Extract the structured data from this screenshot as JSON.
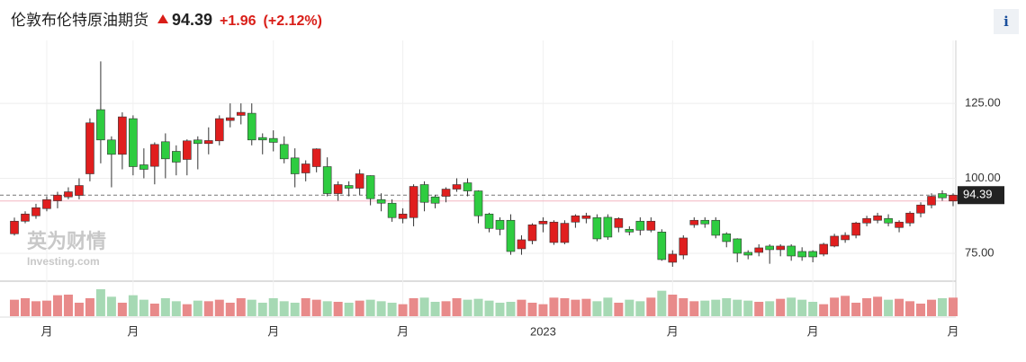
{
  "chart_data": {
    "type": "candlestick",
    "title": "伦敦布伦特原油期货",
    "last_price": 94.39,
    "change": {
      "value": 1.96,
      "label": "+1.96"
    },
    "change_pct": {
      "value": 2.12,
      "label": "(+2.12%)"
    },
    "info_icon": "i",
    "watermark": [
      "英为财情",
      "Investing.com"
    ],
    "up_color": "#e01e1e",
    "down_color": "#2ecc40",
    "categories": [
      null,
      null,
      null,
      "月",
      null,
      null,
      null,
      null,
      null,
      null,
      null,
      "月",
      null,
      null,
      null,
      null,
      null,
      null,
      null,
      null,
      null,
      null,
      null,
      null,
      "月",
      null,
      null,
      null,
      null,
      null,
      null,
      null,
      null,
      null,
      null,
      null,
      "月",
      null,
      null,
      null,
      null,
      null,
      null,
      null,
      null,
      null,
      null,
      null,
      null,
      "2023",
      null,
      null,
      null,
      null,
      null,
      null,
      null,
      null,
      null,
      null,
      null,
      "月",
      null,
      null,
      null,
      null,
      null,
      null,
      null,
      null,
      null,
      null,
      null,
      null,
      "月",
      null,
      null,
      null,
      null,
      null,
      null,
      null,
      null,
      null,
      null,
      null,
      null,
      "月"
    ],
    "open": [
      81.5,
      85.7,
      87.5,
      89.9,
      92.5,
      93.8,
      94.3,
      101.5,
      122.9,
      112.8,
      108,
      119.9,
      104.5,
      104,
      112.2,
      109,
      106.3,
      112.8,
      111.6,
      112.5,
      119.3,
      121,
      121.7,
      113.6,
      113.3,
      111.3,
      106.8,
      101.8,
      103.9,
      103.9,
      94.9,
      97.6,
      96.7,
      100.9,
      92.9,
      91.7,
      86.6,
      86.9,
      97.9,
      93.8,
      94,
      96.4,
      98.5,
      95.8,
      88.1,
      86,
      86,
      76.5,
      79.2,
      84.8,
      78.6,
      78.6,
      85.4,
      86.6,
      86.9,
      87,
      83.6,
      83,
      85.7,
      82.7,
      82.1,
      72,
      74.4,
      84.5,
      86,
      86,
      81.5,
      79.8,
      75.3,
      75.3,
      77.4,
      76.2,
      77.4,
      75.6,
      75.6,
      74.7,
      77.4,
      79.5,
      81,
      85.1,
      86,
      86.6,
      83.6,
      85.1,
      88.4,
      91.1,
      94.9,
      92.43
    ],
    "high": [
      86.9,
      89,
      91.5,
      94,
      95.5,
      97,
      100,
      120,
      139,
      114,
      122,
      121,
      110,
      112,
      115,
      111,
      113,
      114,
      117,
      121,
      125,
      125,
      125,
      115,
      116,
      114,
      110,
      106,
      110,
      107,
      99,
      99,
      103,
      101,
      95,
      93,
      90,
      98,
      99,
      94.5,
      97,
      100,
      100,
      96,
      88.5,
      87,
      88,
      81,
      85,
      87,
      86,
      86,
      88,
      88.5,
      88,
      88,
      87,
      84,
      87,
      87,
      83,
      76,
      81,
      87,
      87,
      87,
      82,
      80,
      76,
      78,
      78,
      78,
      78,
      77,
      76,
      78.5,
      81.5,
      82,
      85.5,
      87.5,
      88.5,
      88,
      86,
      89,
      92,
      95,
      96,
      95
    ],
    "low": [
      80.9,
      85,
      86.5,
      89,
      90,
      93,
      93,
      99,
      105,
      97,
      103,
      101,
      100,
      98,
      100,
      101,
      101,
      103,
      108,
      111,
      117,
      118,
      111,
      108,
      109,
      105,
      97,
      99,
      102,
      94,
      92.5,
      94,
      94.5,
      91,
      89,
      85.5,
      85,
      84,
      89,
      90,
      92,
      95.5,
      94,
      85,
      82,
      81,
      74.5,
      74.5,
      78,
      82,
      77.8,
      78,
      83.5,
      85,
      79,
      79.5,
      82,
      81,
      81,
      82,
      72.5,
      70.5,
      73,
      83.5,
      83.5,
      80,
      77,
      72,
      73,
      74,
      71.5,
      74,
      72.5,
      72.5,
      72,
      74,
      77,
      78.5,
      80,
      84,
      85,
      84,
      82,
      84,
      87,
      90,
      92.5,
      90.7
    ],
    "close": [
      85.7,
      88.1,
      90.2,
      92.9,
      94.4,
      95.5,
      97.6,
      118.5,
      112.8,
      108,
      120.5,
      103.9,
      103,
      111.3,
      106.5,
      105.4,
      112.5,
      111.6,
      112.6,
      119.9,
      120.2,
      122,
      112.8,
      112.8,
      112,
      106.5,
      101.5,
      104.8,
      109.8,
      94.9,
      97.9,
      96.7,
      101.5,
      93.2,
      91.7,
      86.9,
      88.1,
      97.3,
      92,
      91.7,
      96.4,
      97.9,
      95.8,
      87.5,
      83.3,
      83,
      75.6,
      79.5,
      84.5,
      85.7,
      85.4,
      85,
      87.5,
      87.5,
      79.8,
      80.4,
      86.6,
      82.1,
      82.7,
      85.7,
      72.9,
      74.7,
      80.1,
      86,
      84.8,
      81,
      78.9,
      75,
      74.4,
      76.8,
      76.2,
      77.4,
      74.1,
      73.8,
      73.8,
      78,
      80.7,
      81,
      85.1,
      86.6,
      87.5,
      85.1,
      85.4,
      88.4,
      91.1,
      94,
      93.5,
      94.39
    ],
    "volume": [
      55,
      60,
      50,
      52,
      70,
      72,
      45,
      60,
      90,
      65,
      45,
      70,
      55,
      42,
      60,
      50,
      40,
      52,
      50,
      55,
      45,
      60,
      55,
      45,
      60,
      50,
      45,
      60,
      55,
      50,
      48,
      45,
      52,
      55,
      50,
      45,
      40,
      60,
      62,
      48,
      50,
      60,
      55,
      58,
      52,
      45,
      48,
      55,
      45,
      40,
      62,
      60,
      55,
      58,
      50,
      62,
      45,
      55,
      50,
      62,
      85,
      72,
      60,
      50,
      52,
      55,
      60,
      55,
      52,
      48,
      50,
      58,
      62,
      55,
      48,
      40,
      62,
      68,
      45,
      60,
      65,
      55,
      58,
      50,
      42,
      55,
      60,
      62
    ],
    "prev_close": 92.43,
    "ylim": [
      66,
      143
    ],
    "yticks": [
      {
        "value": 75,
        "label": "75.00"
      },
      {
        "value": 100,
        "label": "100.00"
      },
      {
        "value": 125,
        "label": "125.00"
      }
    ],
    "grid": true
  }
}
